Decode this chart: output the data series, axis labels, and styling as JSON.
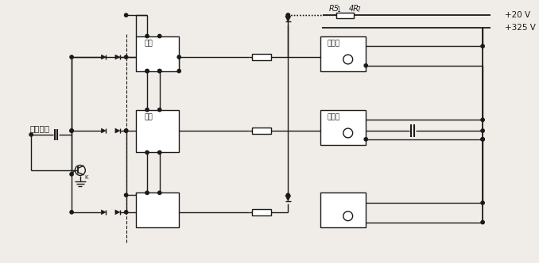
{
  "bg_color": "#f0ede8",
  "line_color": "#1a1a1a",
  "text_color": "#1a1a1a",
  "lw": 1.0,
  "labels": {
    "drive_signal": "驱动信号",
    "opto": "光耦",
    "drive_tube": "驱动管",
    "r5": "R5",
    "r5_sub": "1",
    "r7": "4R",
    "r7_sub": "7",
    "v20": "+20 V",
    "v325": "+325 V"
  }
}
